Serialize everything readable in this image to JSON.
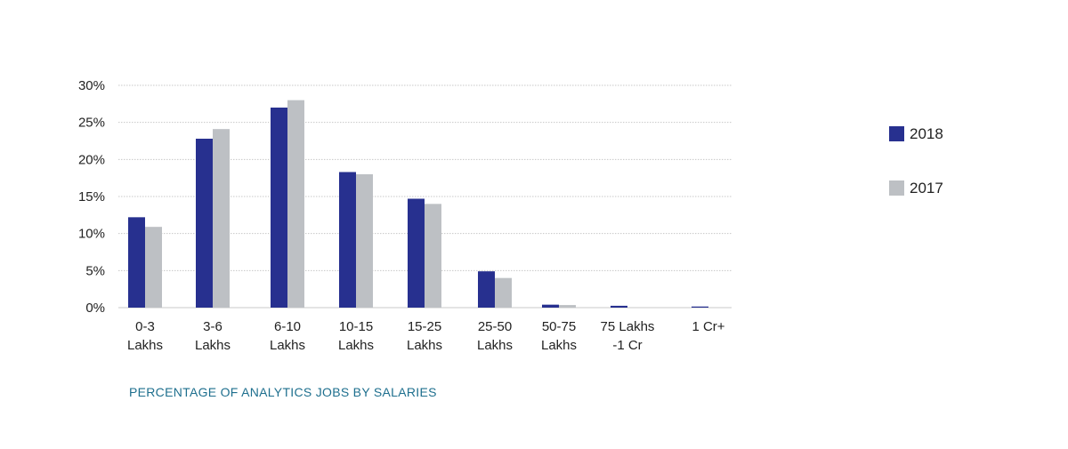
{
  "chart_data": {
    "type": "bar",
    "title": "PERCENTAGE OF ANALYTICS JOBS BY SALARIES",
    "xlabel": "",
    "ylabel": "",
    "ylim": [
      0,
      30
    ],
    "y_ticks": [
      0,
      5,
      10,
      15,
      20,
      25,
      30
    ],
    "y_tick_labels": [
      "0%",
      "5%",
      "10%",
      "15%",
      "20%",
      "25%",
      "30%"
    ],
    "grid": true,
    "legend_position": "right",
    "categories": [
      [
        "0-3",
        "Lakhs"
      ],
      [
        "3-6",
        "Lakhs"
      ],
      [
        "6-10",
        "Lakhs"
      ],
      [
        "10-15",
        "Lakhs"
      ],
      [
        "15-25",
        "Lakhs"
      ],
      [
        "25-50",
        "Lakhs"
      ],
      [
        "50-75",
        "Lakhs"
      ],
      [
        "75 Lakhs",
        "-1 Cr"
      ],
      [
        "1 Cr+"
      ]
    ],
    "series": [
      {
        "name": "2018",
        "color": "#27308f",
        "values": [
          12.2,
          22.8,
          27.0,
          18.3,
          14.7,
          4.9,
          0.4,
          0.25,
          0.15
        ]
      },
      {
        "name": "2017",
        "color": "#bdc0c4",
        "values": [
          10.9,
          24.1,
          28.0,
          18.0,
          14.0,
          4.0,
          0.35,
          0,
          0
        ]
      }
    ],
    "colors": {
      "grid": "#c8c8c8",
      "title": "#1e6f8e",
      "axis_text": "#222222"
    }
  }
}
